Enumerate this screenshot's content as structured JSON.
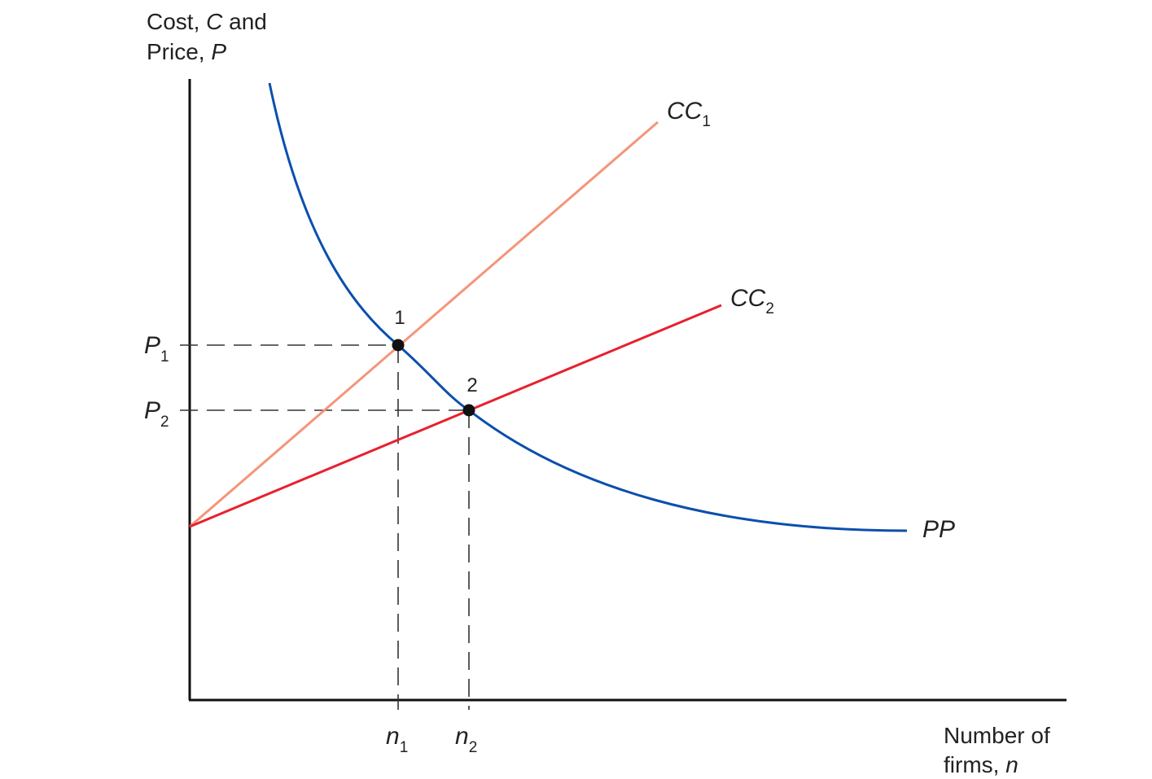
{
  "y_axis_label": {
    "line1_text": "Cost, ",
    "line1_var": "C",
    "line1_tail": " and",
    "line2_text": "Price, ",
    "line2_var": "P"
  },
  "x_axis_label": {
    "line1": "Number of",
    "line2_text": "firms, ",
    "line2_var": "n"
  },
  "curves": {
    "cc1": {
      "base": "CC",
      "sub": "1",
      "color": "#f4957a"
    },
    "cc2": {
      "base": "CC",
      "sub": "2",
      "color": "#e8202e"
    },
    "pp": {
      "name": "PP",
      "color": "#0b4fad"
    }
  },
  "points": {
    "p1": {
      "label": "1"
    },
    "p2": {
      "label": "2"
    }
  },
  "ticks": {
    "P1": {
      "base": "P",
      "sub": "1"
    },
    "P2": {
      "base": "P",
      "sub": "2"
    },
    "n1": {
      "base": "n",
      "sub": "1"
    },
    "n2": {
      "base": "n",
      "sub": "2"
    }
  },
  "colors": {
    "axis": "#111111",
    "guide": "#333333"
  }
}
